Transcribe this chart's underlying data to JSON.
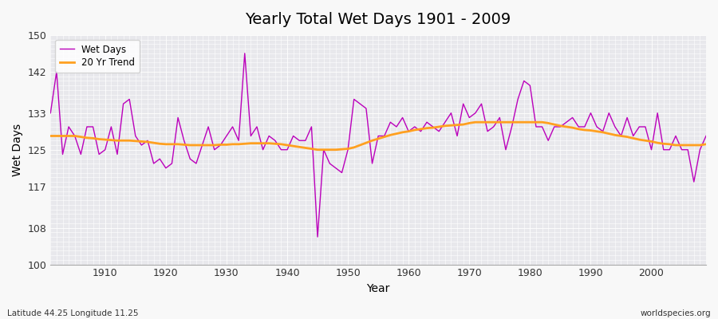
{
  "title": "Yearly Total Wet Days 1901 - 2009",
  "xlabel": "Year",
  "ylabel": "Wet Days",
  "footnote_left": "Latitude 44.25 Longitude 11.25",
  "footnote_right": "worldspecies.org",
  "legend_wet": "Wet Days",
  "legend_trend": "20 Yr Trend",
  "wet_color": "#bb00bb",
  "trend_color": "#ffa020",
  "plot_bg_color": "#e8e8ec",
  "fig_bg_color": "#f8f8f8",
  "ylim": [
    100,
    150
  ],
  "yticks": [
    100,
    108,
    117,
    125,
    133,
    142,
    150
  ],
  "xlim": [
    1901,
    2009
  ],
  "xticks": [
    1910,
    1920,
    1930,
    1940,
    1950,
    1960,
    1970,
    1980,
    1990,
    2000
  ],
  "years": [
    1901,
    1902,
    1903,
    1904,
    1905,
    1906,
    1907,
    1908,
    1909,
    1910,
    1911,
    1912,
    1913,
    1914,
    1915,
    1916,
    1917,
    1918,
    1919,
    1920,
    1921,
    1922,
    1923,
    1924,
    1925,
    1926,
    1927,
    1928,
    1929,
    1930,
    1931,
    1932,
    1933,
    1934,
    1935,
    1936,
    1937,
    1938,
    1939,
    1940,
    1941,
    1942,
    1943,
    1944,
    1945,
    1946,
    1947,
    1948,
    1949,
    1950,
    1951,
    1952,
    1953,
    1954,
    1955,
    1956,
    1957,
    1958,
    1959,
    1960,
    1961,
    1962,
    1963,
    1964,
    1965,
    1966,
    1967,
    1968,
    1969,
    1970,
    1971,
    1972,
    1973,
    1974,
    1975,
    1976,
    1977,
    1978,
    1979,
    1980,
    1981,
    1982,
    1983,
    1984,
    1985,
    1986,
    1987,
    1988,
    1989,
    1990,
    1991,
    1992,
    1993,
    1994,
    1995,
    1996,
    1997,
    1998,
    1999,
    2000,
    2001,
    2002,
    2003,
    2004,
    2005,
    2006,
    2007,
    2008,
    2009
  ],
  "wet_days": [
    133,
    142,
    124,
    130,
    128,
    124,
    130,
    130,
    124,
    125,
    130,
    124,
    135,
    136,
    128,
    126,
    127,
    122,
    123,
    121,
    122,
    132,
    127,
    123,
    122,
    126,
    130,
    125,
    126,
    128,
    130,
    127,
    146,
    128,
    130,
    125,
    128,
    127,
    125,
    125,
    128,
    127,
    127,
    130,
    106,
    125,
    122,
    121,
    120,
    125,
    136,
    135,
    134,
    122,
    128,
    128,
    131,
    130,
    132,
    129,
    130,
    129,
    131,
    130,
    129,
    131,
    133,
    128,
    135,
    132,
    133,
    135,
    129,
    130,
    132,
    125,
    130,
    136,
    140,
    139,
    130,
    130,
    127,
    130,
    130,
    131,
    132,
    130,
    130,
    133,
    130,
    129,
    133,
    130,
    128,
    132,
    128,
    130,
    130,
    125,
    133,
    125,
    125,
    128,
    125,
    125,
    118,
    125,
    128
  ],
  "trend_vals": [
    128.0,
    128.0,
    128.0,
    128.0,
    128.0,
    127.8,
    127.6,
    127.5,
    127.3,
    127.2,
    127.1,
    127.0,
    127.0,
    127.0,
    126.9,
    126.8,
    126.7,
    126.5,
    126.3,
    126.2,
    126.2,
    126.2,
    126.1,
    126.0,
    126.0,
    126.0,
    126.0,
    126.0,
    126.1,
    126.1,
    126.2,
    126.2,
    126.3,
    126.4,
    126.4,
    126.4,
    126.4,
    126.3,
    126.2,
    126.0,
    125.8,
    125.6,
    125.4,
    125.2,
    125.0,
    125.0,
    125.0,
    125.0,
    125.1,
    125.2,
    125.5,
    126.0,
    126.5,
    127.0,
    127.4,
    127.8,
    128.2,
    128.5,
    128.8,
    129.0,
    129.3,
    129.5,
    129.7,
    129.8,
    130.0,
    130.2,
    130.3,
    130.4,
    130.5,
    130.8,
    131.0,
    131.0,
    131.0,
    131.0,
    131.0,
    131.0,
    131.0,
    131.0,
    131.0,
    131.0,
    131.0,
    131.0,
    130.8,
    130.5,
    130.2,
    130.0,
    129.8,
    129.5,
    129.3,
    129.2,
    129.0,
    128.8,
    128.5,
    128.2,
    128.0,
    127.8,
    127.5,
    127.2,
    127.0,
    126.8,
    126.5,
    126.3,
    126.2,
    126.0,
    126.0,
    126.0,
    126.0,
    126.0,
    126.2
  ]
}
